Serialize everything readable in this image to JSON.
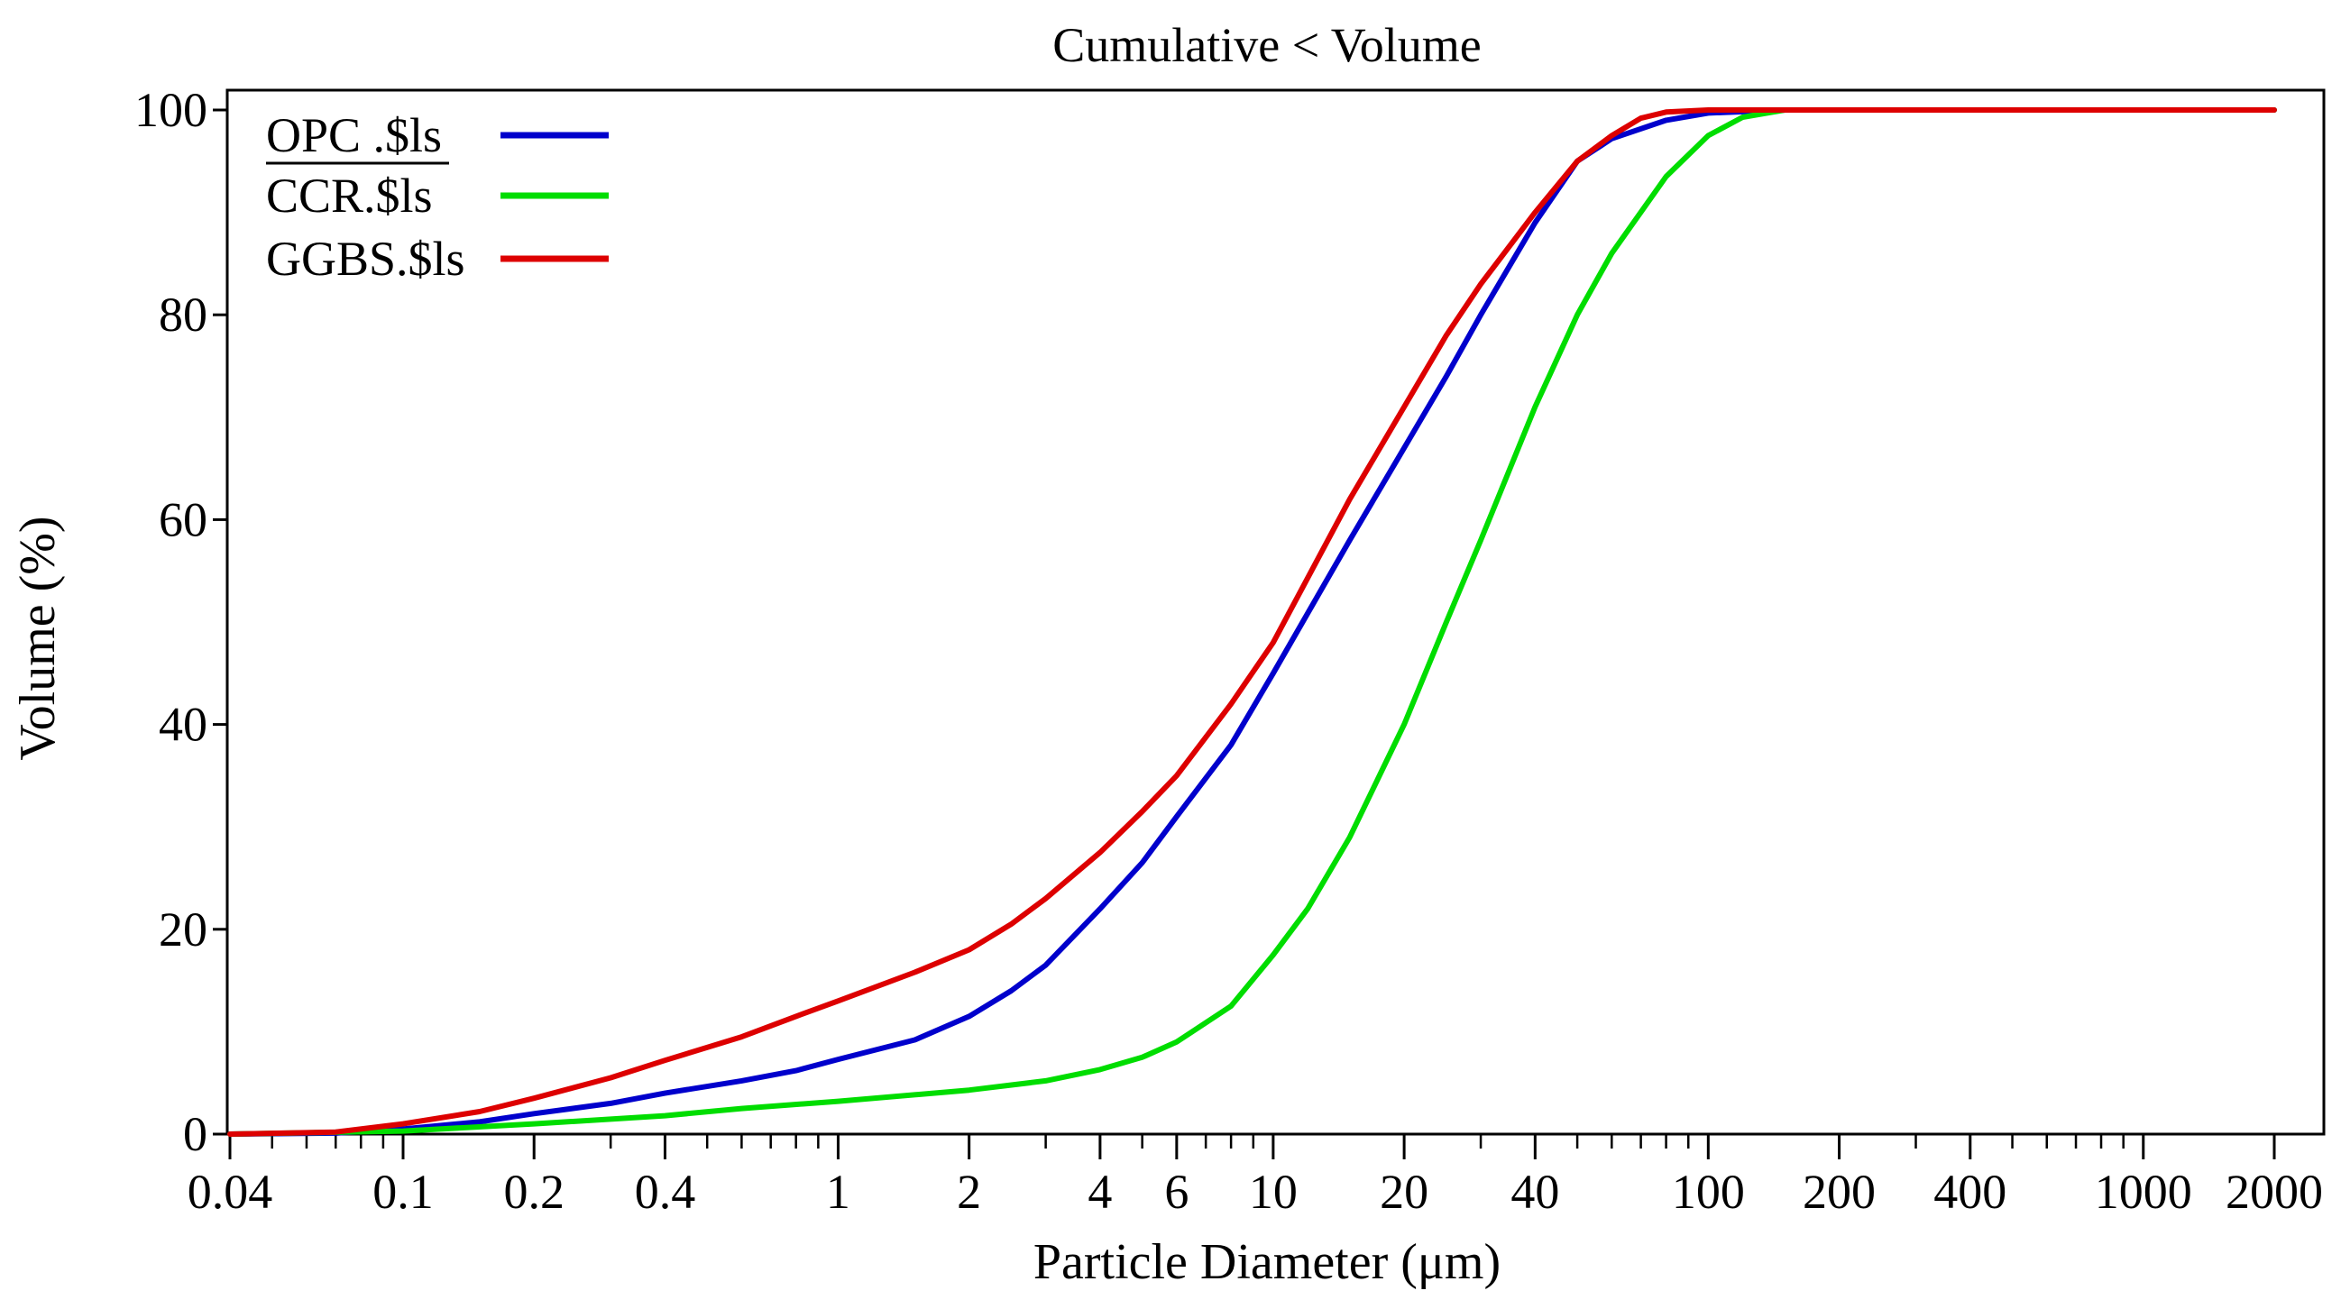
{
  "chart_data": {
    "type": "line",
    "title": "Cumulative < Volume",
    "xlabel": "Particle Diameter (μm)",
    "ylabel": "Volume (%)",
    "xscale": "log",
    "xlim": [
      0.04,
      2000
    ],
    "ylim": [
      0,
      100
    ],
    "x_ticks": [
      0.04,
      0.1,
      0.2,
      0.4,
      1,
      2,
      4,
      6,
      10,
      20,
      40,
      100,
      200,
      400,
      1000,
      2000
    ],
    "x_tick_labels": [
      "0.04",
      "0.1",
      "0.2",
      "0.4",
      "1",
      "2",
      "4",
      "6",
      "10",
      "20",
      "40",
      "100",
      "200",
      "400",
      "1000",
      "2000"
    ],
    "y_ticks": [
      0,
      20,
      40,
      60,
      80,
      100
    ],
    "y_tick_labels": [
      "0",
      "20",
      "40",
      "60",
      "80",
      "100"
    ],
    "grid": false,
    "legend_position": "top-left",
    "series": [
      {
        "name": "OPC .$ls",
        "color": "#0000cc",
        "x": [
          0.04,
          0.07,
          0.1,
          0.15,
          0.2,
          0.3,
          0.4,
          0.6,
          0.8,
          1,
          1.5,
          2,
          2.5,
          3,
          4,
          5,
          6,
          8,
          10,
          15,
          20,
          25,
          30,
          40,
          50,
          60,
          80,
          100,
          150,
          200,
          500,
          1000,
          2000
        ],
        "y": [
          0,
          0.1,
          0.5,
          1.2,
          2,
          3,
          4,
          5.2,
          6.2,
          7.3,
          9.2,
          11.5,
          14,
          16.5,
          22,
          26.5,
          31,
          38,
          45,
          58,
          67,
          74,
          80,
          89,
          95,
          97.2,
          99,
          99.7,
          100,
          100,
          100,
          100,
          100
        ]
      },
      {
        "name": "CCR.$ls",
        "color": "#00dd00",
        "x": [
          0.04,
          0.1,
          0.2,
          0.4,
          0.6,
          1,
          2,
          3,
          4,
          5,
          6,
          8,
          10,
          12,
          15,
          20,
          25,
          30,
          40,
          50,
          60,
          80,
          100,
          120,
          150,
          200,
          500,
          1000,
          2000
        ],
        "y": [
          0,
          0.3,
          1,
          1.8,
          2.5,
          3.2,
          4.3,
          5.2,
          6.3,
          7.5,
          9,
          12.5,
          17.5,
          22,
          29,
          40,
          50,
          58,
          71,
          80,
          86,
          93.5,
          97.5,
          99.3,
          100,
          100,
          100,
          100,
          100
        ]
      },
      {
        "name": "GGBS.$ls",
        "color": "#dd0000",
        "x": [
          0.04,
          0.07,
          0.1,
          0.15,
          0.2,
          0.3,
          0.4,
          0.6,
          0.8,
          1,
          1.5,
          2,
          2.5,
          3,
          4,
          5,
          6,
          8,
          10,
          15,
          20,
          25,
          30,
          40,
          50,
          60,
          70,
          80,
          100,
          150,
          200,
          500,
          1000,
          2000
        ],
        "y": [
          0,
          0.2,
          1,
          2.2,
          3.5,
          5.5,
          7.2,
          9.5,
          11.5,
          13,
          15.8,
          18,
          20.5,
          23,
          27.5,
          31.5,
          35,
          42,
          48,
          62,
          71,
          78,
          83,
          90,
          95,
          97.5,
          99.2,
          99.8,
          100,
          100,
          100,
          100,
          100,
          100
        ]
      }
    ]
  }
}
